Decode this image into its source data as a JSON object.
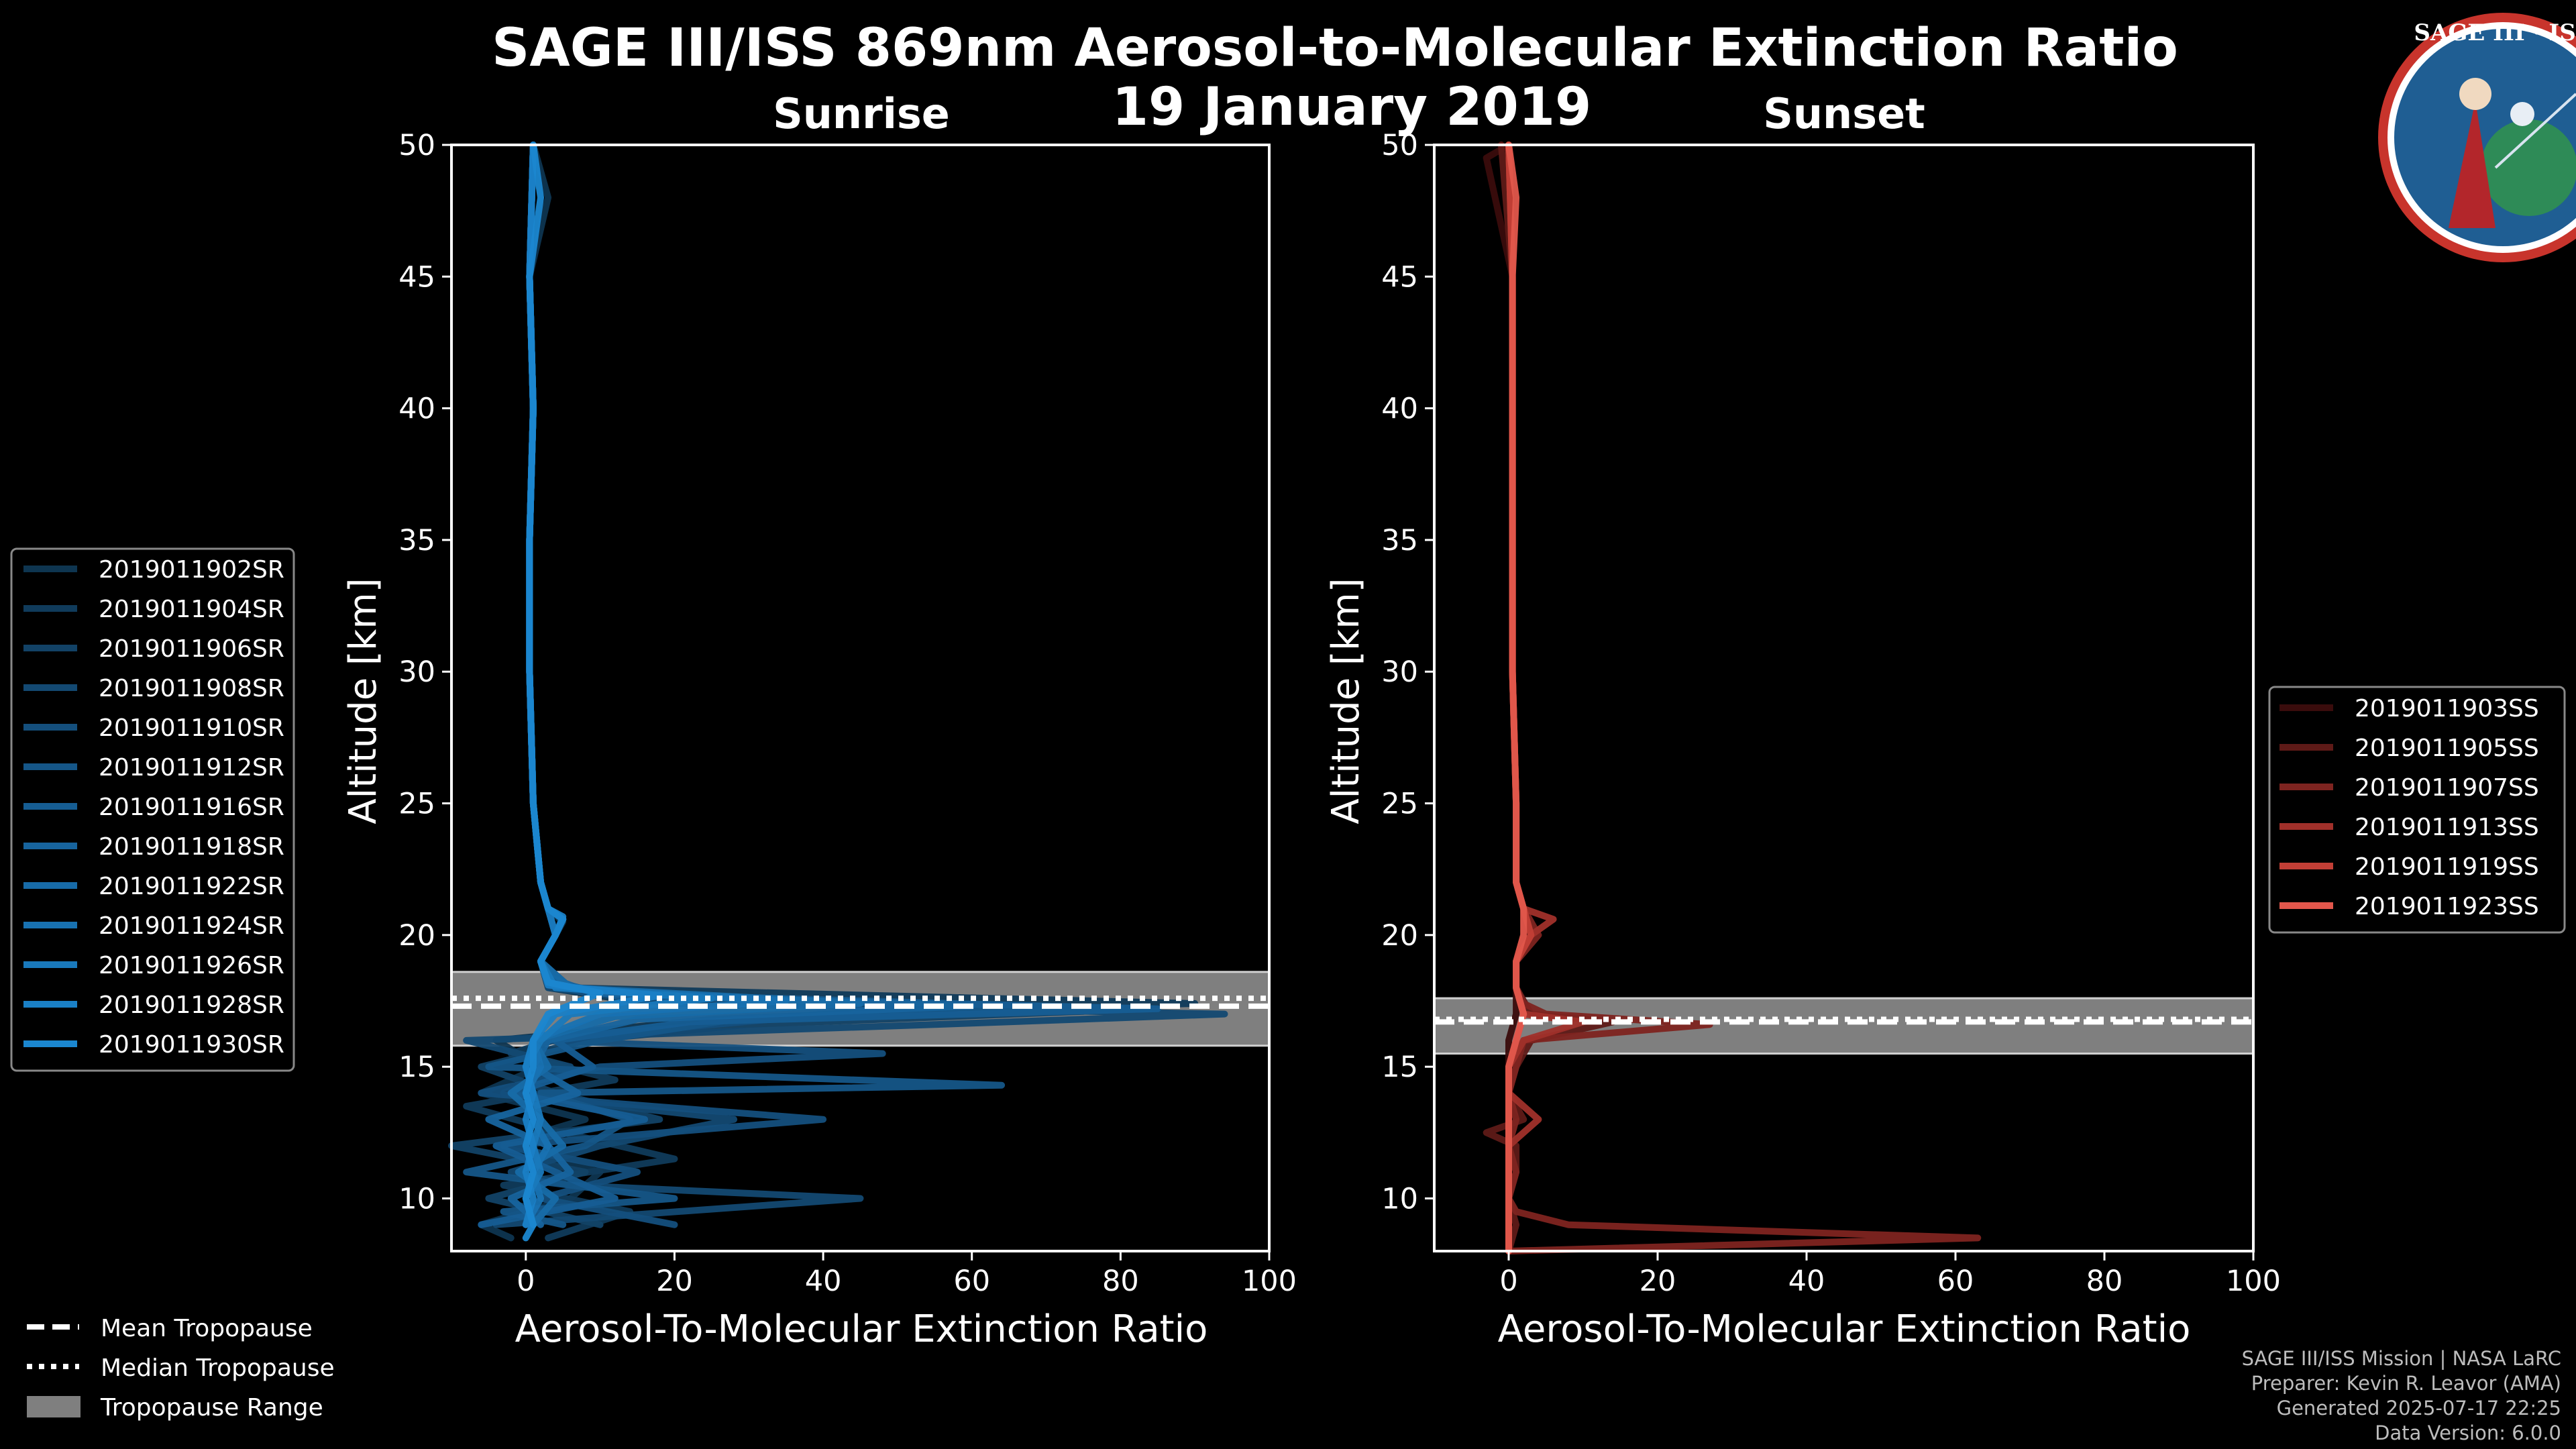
{
  "title": "SAGE III/ISS 869nm Aerosol-to-Molecular Extinction Ratio",
  "date": "19 January 2019",
  "logo": {
    "text": "SAGE III · ISS"
  },
  "colors": {
    "background": "#000000",
    "sunrise": "#1a7fbf",
    "sunset": "#e2574c",
    "tropo_band": "#7f7f7f"
  },
  "chart_data": [
    {
      "type": "line",
      "panel": "Sunrise",
      "title": "Sunrise",
      "xlabel": "Aerosol-To-Molecular Extinction Ratio",
      "ylabel": "Altitude [km]",
      "xlim": [
        -10,
        100
      ],
      "ylim": [
        8,
        50
      ],
      "xticks": [
        0,
        20,
        40,
        60,
        80,
        100
      ],
      "yticks": [
        10,
        15,
        20,
        25,
        30,
        35,
        40,
        45,
        50
      ],
      "legend_position": "left",
      "tropopause": {
        "mean_km": 17.3,
        "median_km": 17.6,
        "range_km": [
          15.8,
          18.6
        ]
      },
      "series": [
        {
          "name": "2019011902SR",
          "color": "#0e3550",
          "alt": [
            8.5,
            9,
            10,
            11,
            12,
            13,
            14,
            15,
            16,
            16.8,
            17.2,
            17.6,
            18,
            19,
            20,
            20.5,
            21,
            22,
            25,
            30,
            35,
            40,
            45,
            48,
            50
          ],
          "x": [
            -2,
            -6,
            6,
            10,
            -4,
            8,
            -6,
            2,
            -4,
            25,
            60,
            12,
            3,
            2,
            4,
            5,
            3,
            2,
            1,
            0.5,
            0.5,
            1,
            0.5,
            3,
            1
          ]
        },
        {
          "name": "2019011904SR",
          "color": "#103b5b",
          "alt": [
            8.5,
            9.5,
            10.5,
            11.5,
            12.5,
            13.5,
            14.5,
            15.5,
            16.2,
            17,
            17.4,
            18,
            19,
            20,
            20.6,
            21,
            22,
            25,
            30,
            35,
            40,
            45,
            50
          ],
          "x": [
            3,
            14,
            -3,
            20,
            5,
            -8,
            12,
            -2,
            6,
            40,
            90,
            6,
            2,
            4,
            5,
            3,
            2,
            1,
            0.5,
            0.5,
            1,
            0.5,
            1
          ]
        },
        {
          "name": "2019011906SR",
          "color": "#124266",
          "alt": [
            9,
            10,
            11,
            12,
            13,
            14,
            15,
            16,
            16.6,
            17.1,
            17.5,
            18,
            19,
            20,
            21,
            22,
            25,
            30,
            35,
            40,
            45,
            50
          ],
          "x": [
            10,
            -5,
            8,
            -10,
            18,
            4,
            -6,
            8,
            30,
            75,
            15,
            4,
            2,
            4,
            3,
            2,
            1,
            0.5,
            0.5,
            1,
            0.5,
            1
          ]
        },
        {
          "name": "2019011908SR",
          "color": "#134972",
          "alt": [
            9,
            10,
            10.5,
            11,
            12,
            13,
            14,
            15,
            16,
            16.6,
            17,
            17.4,
            18,
            19,
            20,
            20.6,
            21,
            22,
            25,
            30,
            35,
            40,
            45,
            50
          ],
          "x": [
            -4,
            45,
            6,
            -2,
            10,
            28,
            -3,
            6,
            -8,
            55,
            94,
            20,
            3,
            2,
            4,
            5,
            3,
            2,
            1,
            0.5,
            0.5,
            1,
            0.5,
            1
          ]
        },
        {
          "name": "2019011910SR",
          "color": "#144f7d",
          "alt": [
            9,
            10,
            11,
            12,
            13,
            14,
            15,
            15.5,
            16,
            16.8,
            17.2,
            17.8,
            18.2,
            19,
            20,
            21,
            22,
            25,
            30,
            35,
            40,
            45,
            50
          ],
          "x": [
            20,
            2,
            15,
            -3,
            40,
            -6,
            10,
            48,
            2,
            33,
            80,
            8,
            3,
            2,
            4,
            3,
            2,
            1,
            0.5,
            0.5,
            1,
            0.5,
            1
          ]
        },
        {
          "name": "2019011912SR",
          "color": "#155688",
          "alt": [
            9,
            9.5,
            10,
            11,
            12,
            13,
            14,
            14.3,
            15,
            16,
            16.8,
            17.3,
            17.8,
            18.3,
            19,
            20,
            20.6,
            21,
            22,
            25,
            30,
            35,
            40,
            45,
            50
          ],
          "x": [
            5,
            -3,
            20,
            -8,
            8,
            14,
            2,
            64,
            -5,
            10,
            28,
            70,
            10,
            3,
            2,
            4,
            5,
            3,
            2,
            1,
            0.5,
            0.5,
            1,
            0.5,
            1
          ]
        },
        {
          "name": "2019011916SR",
          "color": "#165d93",
          "alt": [
            9,
            10,
            11,
            12,
            13,
            14,
            15,
            16,
            16.7,
            17.2,
            17.7,
            18.2,
            19,
            20,
            21,
            22,
            25,
            30,
            35,
            40,
            45,
            50
          ],
          "x": [
            -6,
            12,
            4,
            -4,
            16,
            -2,
            9,
            4,
            22,
            85,
            12,
            4,
            2,
            4,
            3,
            2,
            1,
            0.5,
            0.5,
            1,
            0.5,
            1
          ]
        },
        {
          "name": "2019011918SR",
          "color": "#17649e",
          "alt": [
            9,
            10,
            11,
            12,
            13,
            14,
            15,
            16,
            16.8,
            17.3,
            17.8,
            18.4,
            19,
            20,
            20.6,
            21,
            22,
            25,
            30,
            35,
            40,
            45,
            50
          ],
          "x": [
            2,
            -2,
            6,
            3,
            -5,
            7,
            1,
            3,
            15,
            60,
            9,
            3,
            2,
            4,
            5,
            3,
            2,
            1,
            0.5,
            0.5,
            1,
            0.5,
            1
          ]
        },
        {
          "name": "2019011922SR",
          "color": "#176ba8",
          "alt": [
            9,
            10,
            11,
            12,
            13,
            14,
            15,
            16,
            16.9,
            17.4,
            18,
            19,
            20,
            21,
            22,
            25,
            30,
            35,
            40,
            45,
            50
          ],
          "x": [
            1,
            4,
            -1,
            5,
            2,
            -2,
            3,
            1,
            12,
            45,
            6,
            2,
            4,
            3,
            2,
            1,
            0.5,
            0.5,
            1,
            0.5,
            1
          ]
        },
        {
          "name": "2019011924SR",
          "color": "#1872b2",
          "alt": [
            9,
            10,
            11,
            12,
            13,
            14,
            15,
            16,
            17,
            17.5,
            18,
            19,
            20,
            20.6,
            21,
            22,
            25,
            30,
            35,
            40,
            45,
            50
          ],
          "x": [
            0,
            2,
            1,
            3,
            1,
            0,
            2,
            1,
            10,
            35,
            4,
            2,
            4,
            5,
            3,
            2,
            1,
            0.5,
            0.5,
            1,
            0.5,
            1
          ]
        },
        {
          "name": "2019011926SR",
          "color": "#1979bc",
          "alt": [
            9,
            10,
            11,
            12,
            13,
            14,
            15,
            16,
            17,
            17.6,
            18,
            19,
            20,
            21,
            22,
            25,
            30,
            35,
            40,
            45,
            50
          ],
          "x": [
            1,
            0,
            2,
            1,
            2,
            1,
            0,
            2,
            6,
            25,
            4,
            2,
            4,
            3,
            2,
            1,
            0.5,
            0.5,
            1,
            0.5,
            1
          ]
        },
        {
          "name": "2019011928SR",
          "color": "#1a80c6",
          "alt": [
            9,
            10,
            11,
            12,
            13,
            14,
            15,
            16,
            17,
            17.7,
            18.1,
            19,
            20,
            20.7,
            21,
            22,
            25,
            30,
            35,
            40,
            45,
            50
          ],
          "x": [
            0,
            1,
            0,
            1,
            0,
            1,
            0,
            1,
            4,
            18,
            3,
            2,
            4,
            5,
            3,
            2,
            1,
            0.5,
            0.5,
            1,
            0.5,
            1
          ]
        },
        {
          "name": "2019011930SR",
          "color": "#1b87d0",
          "alt": [
            8.5,
            9,
            10,
            11,
            12,
            13,
            14,
            15,
            16,
            17,
            17.8,
            18.2,
            19,
            20,
            20.6,
            21,
            22,
            25,
            30,
            35,
            40,
            45,
            48,
            50
          ],
          "x": [
            0,
            1,
            0,
            1,
            0,
            1,
            0,
            1,
            1,
            3,
            10,
            3,
            2,
            4,
            5,
            3,
            2,
            1,
            0.5,
            0.5,
            1,
            0.5,
            2,
            1
          ]
        }
      ]
    },
    {
      "type": "line",
      "panel": "Sunset",
      "title": "Sunset",
      "xlabel": "Aerosol-To-Molecular Extinction Ratio",
      "ylabel": "Altitude [km]",
      "xlim": [
        -10,
        100
      ],
      "ylim": [
        8,
        50
      ],
      "xticks": [
        0,
        20,
        40,
        60,
        80,
        100
      ],
      "yticks": [
        10,
        15,
        20,
        25,
        30,
        35,
        40,
        45,
        50
      ],
      "legend_position": "right",
      "tropopause": {
        "mean_km": 16.7,
        "median_km": 16.8,
        "range_km": [
          15.5,
          17.6
        ]
      },
      "series": [
        {
          "name": "2019011903SS",
          "color": "#3a0c0c",
          "alt": [
            8,
            9,
            10,
            11,
            12,
            13,
            14,
            15,
            16,
            17,
            18,
            19,
            20,
            21,
            22,
            25,
            30,
            35,
            40,
            45,
            49.5,
            50
          ],
          "x": [
            0,
            0,
            0,
            0,
            0,
            0,
            0,
            0,
            0,
            1,
            1,
            1,
            2,
            2,
            1,
            1,
            0.5,
            0.5,
            0.5,
            0.5,
            -3,
            0
          ]
        },
        {
          "name": "2019011905SS",
          "color": "#5e1a17",
          "alt": [
            8,
            9,
            10,
            11,
            12,
            12.5,
            13,
            14,
            15,
            16,
            16.7,
            17,
            18,
            19,
            20,
            21,
            22,
            25,
            30,
            35,
            40,
            45,
            50
          ],
          "x": [
            0,
            1,
            0,
            1,
            1,
            -3,
            2,
            0,
            1,
            3,
            14,
            3,
            1,
            1,
            3,
            2,
            1,
            1,
            0.5,
            0.5,
            0.5,
            0.5,
            -1
          ]
        },
        {
          "name": "2019011907SS",
          "color": "#7e2420",
          "alt": [
            8,
            8.5,
            9,
            9.5,
            10,
            11,
            12,
            13,
            14,
            15,
            16,
            16.6,
            17,
            17.4,
            18,
            19,
            20,
            21,
            22,
            25,
            30,
            35,
            40,
            45,
            50
          ],
          "x": [
            0,
            63,
            8,
            1,
            0,
            1,
            0,
            1,
            0,
            1,
            2,
            27,
            5,
            2,
            1,
            1,
            4,
            2,
            1,
            1,
            0.5,
            0.5,
            0.5,
            0.5,
            0
          ]
        },
        {
          "name": "2019011913SS",
          "color": "#a0302a",
          "alt": [
            8,
            9,
            10,
            11,
            12,
            13,
            14,
            15,
            16,
            16.7,
            17,
            18,
            19,
            20,
            20.6,
            21,
            22,
            25,
            30,
            35,
            40,
            45,
            50
          ],
          "x": [
            0,
            0,
            0,
            0,
            0,
            4,
            0,
            0,
            2,
            10,
            2,
            1,
            1,
            3,
            6,
            2,
            1,
            1,
            0.5,
            0.5,
            0.5,
            0.5,
            0
          ]
        },
        {
          "name": "2019011919SS",
          "color": "#c23f36",
          "alt": [
            8,
            9,
            10,
            11,
            12,
            13,
            14,
            15,
            16,
            17,
            18,
            19,
            20,
            21,
            22,
            25,
            30,
            35,
            40,
            45,
            50
          ],
          "x": [
            0,
            0,
            0,
            0,
            0,
            0,
            0,
            0,
            1,
            2,
            1,
            1,
            3,
            2,
            1,
            1,
            0.5,
            0.5,
            0.5,
            0.5,
            0
          ]
        },
        {
          "name": "2019011923SS",
          "color": "#e2574c",
          "alt": [
            8,
            9,
            10,
            11,
            12,
            13,
            14,
            15,
            16,
            17,
            18,
            19,
            20,
            21,
            22,
            25,
            30,
            35,
            40,
            45,
            48,
            50
          ],
          "x": [
            0,
            0,
            0,
            0,
            0,
            0,
            0,
            0,
            1,
            2,
            1,
            1,
            2,
            2,
            1,
            1,
            0.5,
            0.5,
            0.5,
            0.5,
            1,
            0
          ]
        }
      ]
    }
  ],
  "tropo_legend": {
    "mean": "Mean Tropopause",
    "median": "Median Tropopause",
    "range": "Tropopause Range"
  },
  "footer": {
    "line1": "SAGE III/ISS Mission | NASA LaRC",
    "line2": "Preparer: Kevin R. Leavor (AMA)",
    "line3": "Generated 2025-07-17 22:25",
    "line4": "Data Version: 6.0.0"
  }
}
